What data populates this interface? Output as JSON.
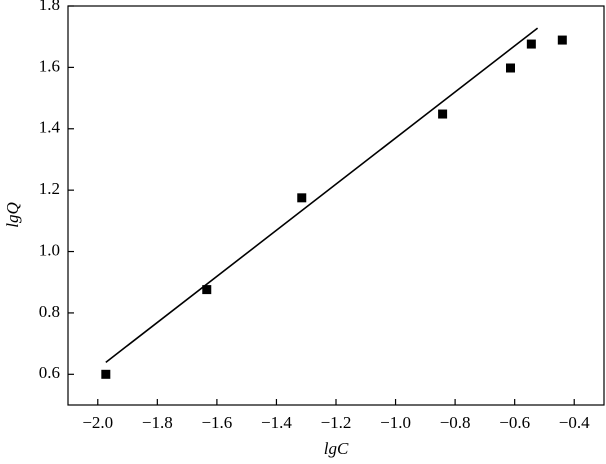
{
  "chart_data": {
    "type": "scatter",
    "x_label": "lgC",
    "y_label": "lgQ",
    "series": [
      {
        "color": "#000000",
        "x": [
          -1.973,
          -1.634,
          -1.315,
          -0.842,
          -0.614,
          -0.544,
          -0.44
        ],
        "values": [
          0.6,
          0.876,
          1.175,
          1.448,
          1.598,
          1.676,
          1.689
        ]
      }
    ],
    "fit_line": {
      "color": "#000000",
      "x": [
        -1.973,
        -0.523
      ],
      "values": [
        0.639,
        1.728
      ]
    },
    "xlim": [
      -2.1,
      -0.3
    ],
    "xticks": [
      {
        "value": -2,
        "label": "−2.0"
      },
      {
        "value": -1.8,
        "label": "−1.8"
      },
      {
        "value": -1.6,
        "label": "−1.6"
      },
      {
        "value": -1.4,
        "label": "−1.4"
      },
      {
        "value": -1.2,
        "label": "−1.2"
      },
      {
        "value": -1,
        "label": "−1.0"
      },
      {
        "value": -0.8,
        "label": "−0.8"
      },
      {
        "value": -0.6,
        "label": "−0.6"
      },
      {
        "value": -0.4,
        "label": "−0.4"
      }
    ],
    "ylim": [
      0.5,
      1.8
    ],
    "yticks": [
      0.6,
      0.8,
      {
        "value": 1,
        "label": "1.0"
      },
      1.2,
      1.4,
      1.6,
      1.8
    ],
    "grid": false
  }
}
